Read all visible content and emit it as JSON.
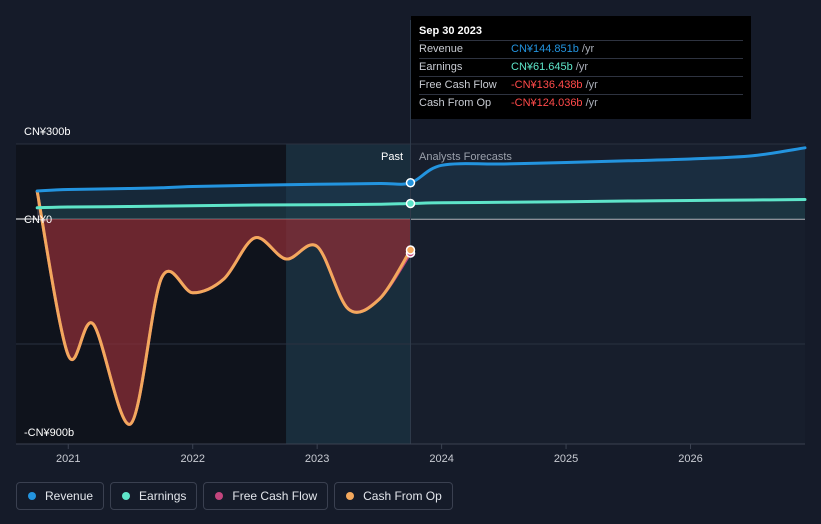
{
  "colors": {
    "revenue": "#2394df",
    "earnings": "#5ee5c9",
    "free_cash_flow": "#c2457d",
    "cash_from_op": "#f3a85d",
    "negative_value": "#ff4a4a",
    "background": "#151b29"
  },
  "tooltip": {
    "date": "Sep 30 2023",
    "rows": [
      {
        "label": "Revenue",
        "value": "CN¥144.851b",
        "unit": "/yr",
        "color": "#2394df"
      },
      {
        "label": "Earnings",
        "value": "CN¥61.645b",
        "unit": "/yr",
        "color": "#5ee5c9"
      },
      {
        "label": "Free Cash Flow",
        "value": "-CN¥136.438b",
        "unit": "/yr",
        "color": "#ff4a4a"
      },
      {
        "label": "Cash From Op",
        "value": "-CN¥124.036b",
        "unit": "/yr",
        "color": "#ff4a4a"
      }
    ]
  },
  "legend": [
    {
      "label": "Revenue",
      "color": "#2394df",
      "icon": "circle-icon"
    },
    {
      "label": "Earnings",
      "color": "#5ee5c9",
      "icon": "circle-icon"
    },
    {
      "label": "Free Cash Flow",
      "color": "#c2457d",
      "icon": "circle-icon"
    },
    {
      "label": "Cash From Op",
      "color": "#f3a85d",
      "icon": "circle-icon"
    }
  ],
  "chart_data": {
    "type": "line",
    "unit": "CN¥ billions",
    "ylim": [
      -900,
      300
    ],
    "xlim": [
      2020.58,
      2026.92
    ],
    "y_tick_labels": [
      {
        "label": "CN¥300b",
        "value": 300
      },
      {
        "label": "CN¥0",
        "value": 0
      },
      {
        "label": "-CN¥900b",
        "value": -900
      }
    ],
    "x_tick_labels": [
      "2021",
      "2022",
      "2023",
      "2024",
      "2025",
      "2026"
    ],
    "x_tick_values": [
      2021,
      2022,
      2023,
      2024,
      2025,
      2026
    ],
    "past_label": "Past",
    "forecast_label": "Analysts Forecasts",
    "divider_x": 2023.75,
    "highlight_range": [
      2022.75,
      2023.75
    ],
    "series": [
      {
        "name": "Revenue",
        "color": "#2394df",
        "x": [
          2020.75,
          2021.0,
          2021.5,
          2021.75,
          2022.0,
          2022.5,
          2023.0,
          2023.5,
          2023.75,
          2024.0,
          2024.5,
          2025.0,
          2025.5,
          2026.0,
          2026.5,
          2026.92
        ],
        "values": [
          112,
          118,
          122,
          125,
          130,
          135,
          139,
          142,
          145,
          215,
          220,
          226,
          233,
          240,
          253,
          285
        ]
      },
      {
        "name": "Earnings",
        "color": "#5ee5c9",
        "x": [
          2020.75,
          2021.0,
          2021.5,
          2022.0,
          2022.5,
          2023.0,
          2023.5,
          2023.75,
          2024.0,
          2024.5,
          2025.0,
          2025.5,
          2026.0,
          2026.5,
          2026.92
        ],
        "values": [
          45,
          48,
          50,
          53,
          56,
          57,
          59,
          62,
          65,
          67,
          69,
          72,
          74,
          76,
          78
        ]
      },
      {
        "name": "Free Cash Flow",
        "color": "#c2457d",
        "x": [
          2020.75,
          2021.0,
          2021.2,
          2021.5,
          2021.75,
          2022.0,
          2022.25,
          2022.5,
          2022.75,
          2023.0,
          2023.25,
          2023.5,
          2023.75
        ],
        "values": [
          110,
          -545,
          -420,
          -820,
          -235,
          -295,
          -240,
          -75,
          -160,
          -110,
          -360,
          -320,
          -136
        ]
      },
      {
        "name": "Cash From Op",
        "color": "#f3a85d",
        "x": [
          2020.75,
          2021.0,
          2021.2,
          2021.5,
          2021.75,
          2022.0,
          2022.25,
          2022.5,
          2022.75,
          2023.0,
          2023.25,
          2023.5,
          2023.75
        ],
        "values": [
          110,
          -545,
          -420,
          -820,
          -235,
          -295,
          -240,
          -75,
          -160,
          -110,
          -360,
          -320,
          -124
        ]
      }
    ]
  }
}
